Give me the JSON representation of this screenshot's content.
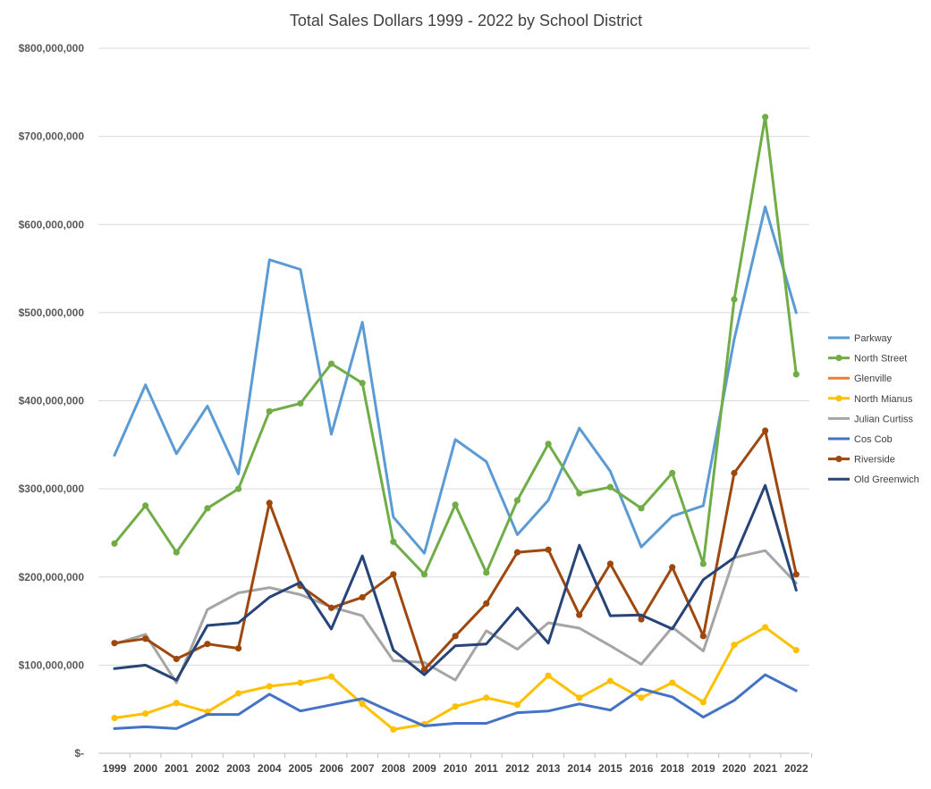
{
  "chart_data": {
    "type": "line",
    "title": "Total Sales Dollars 1999 - 2022 by School District",
    "x": [
      "1999",
      "2000",
      "2001",
      "2002",
      "2003",
      "2004",
      "2005",
      "2006",
      "2007",
      "2008",
      "2009",
      "2010",
      "2011",
      "2012",
      "2013",
      "2014",
      "2015",
      "2016",
      "2018",
      "2019",
      "2020",
      "2021",
      "2022"
    ],
    "ylim": [
      0,
      800000000
    ],
    "yticks": [
      {
        "value": 0,
        "label": "$-"
      },
      {
        "value": 100000000,
        "label": "$100,000,000"
      },
      {
        "value": 200000000,
        "label": "$200,000,000"
      },
      {
        "value": 300000000,
        "label": "$300,000,000"
      },
      {
        "value": 400000000,
        "label": "$400,000,000"
      },
      {
        "value": 500000000,
        "label": "$500,000,000"
      },
      {
        "value": 600000000,
        "label": "$600,000,000"
      },
      {
        "value": 700000000,
        "label": "$700,000,000"
      },
      {
        "value": 800000000,
        "label": "$800,000,000"
      }
    ],
    "grid": true,
    "legend_position": "right",
    "series": [
      {
        "name": "Parkway",
        "color": "#5B9BD5",
        "markers": false,
        "values": [
          338000000,
          418000000,
          340000000,
          394000000,
          317000000,
          560000000,
          549000000,
          362000000,
          489000000,
          268000000,
          227000000,
          356000000,
          331000000,
          248000000,
          287000000,
          369000000,
          320000000,
          234000000,
          269000000,
          281000000,
          470000000,
          620000000,
          500000000
        ]
      },
      {
        "name": "North Street",
        "color": "#70AD47",
        "markers": true,
        "values": [
          238000000,
          281000000,
          228000000,
          278000000,
          300000000,
          388000000,
          397000000,
          442000000,
          420000000,
          240000000,
          203000000,
          282000000,
          205000000,
          287000000,
          351000000,
          295000000,
          302000000,
          278000000,
          318000000,
          215000000,
          515000000,
          722000000,
          430000000
        ]
      },
      {
        "name": "Glenville",
        "color": "#ED7D31",
        "markers": false,
        "values": [
          null,
          null,
          null,
          null,
          null,
          null,
          null,
          null,
          null,
          null,
          null,
          null,
          null,
          null,
          null,
          null,
          null,
          null,
          null,
          null,
          null,
          null,
          null
        ]
      },
      {
        "name": "North Mianus",
        "color": "#FFC000",
        "markers": true,
        "values": [
          40000000,
          45000000,
          57000000,
          47000000,
          68000000,
          76000000,
          80000000,
          87000000,
          56000000,
          27000000,
          33000000,
          53000000,
          63000000,
          55000000,
          88000000,
          63000000,
          82000000,
          63000000,
          80000000,
          58000000,
          123000000,
          143000000,
          117000000
        ]
      },
      {
        "name": "Julian Curtiss",
        "color": "#A5A5A5",
        "markers": false,
        "values": [
          124000000,
          135000000,
          80000000,
          163000000,
          182000000,
          188000000,
          180000000,
          166000000,
          156000000,
          105000000,
          103000000,
          83000000,
          139000000,
          118000000,
          148000000,
          142000000,
          122000000,
          101000000,
          143000000,
          116000000,
          222000000,
          230000000,
          193000000
        ]
      },
      {
        "name": "Cos Cob",
        "color": "#4472C4",
        "markers": false,
        "values": [
          28000000,
          30000000,
          28000000,
          44000000,
          44000000,
          67000000,
          48000000,
          55000000,
          62000000,
          46000000,
          31000000,
          34000000,
          34000000,
          46000000,
          48000000,
          56000000,
          49000000,
          73000000,
          64000000,
          41000000,
          60000000,
          89000000,
          71000000
        ]
      },
      {
        "name": "Riverside",
        "color": "#9E480E",
        "markers": true,
        "values": [
          125000000,
          130000000,
          107000000,
          124000000,
          119000000,
          284000000,
          190000000,
          165000000,
          177000000,
          203000000,
          95000000,
          133000000,
          170000000,
          228000000,
          231000000,
          157000000,
          215000000,
          152000000,
          211000000,
          133000000,
          318000000,
          366000000,
          203000000
        ]
      },
      {
        "name": "Old Greenwich",
        "color": "#264478",
        "markers": false,
        "values": [
          96000000,
          100000000,
          83000000,
          145000000,
          148000000,
          177000000,
          194000000,
          141000000,
          224000000,
          117000000,
          89000000,
          122000000,
          124000000,
          165000000,
          125000000,
          236000000,
          156000000,
          157000000,
          141000000,
          197000000,
          222000000,
          304000000,
          185000000
        ]
      }
    ]
  }
}
